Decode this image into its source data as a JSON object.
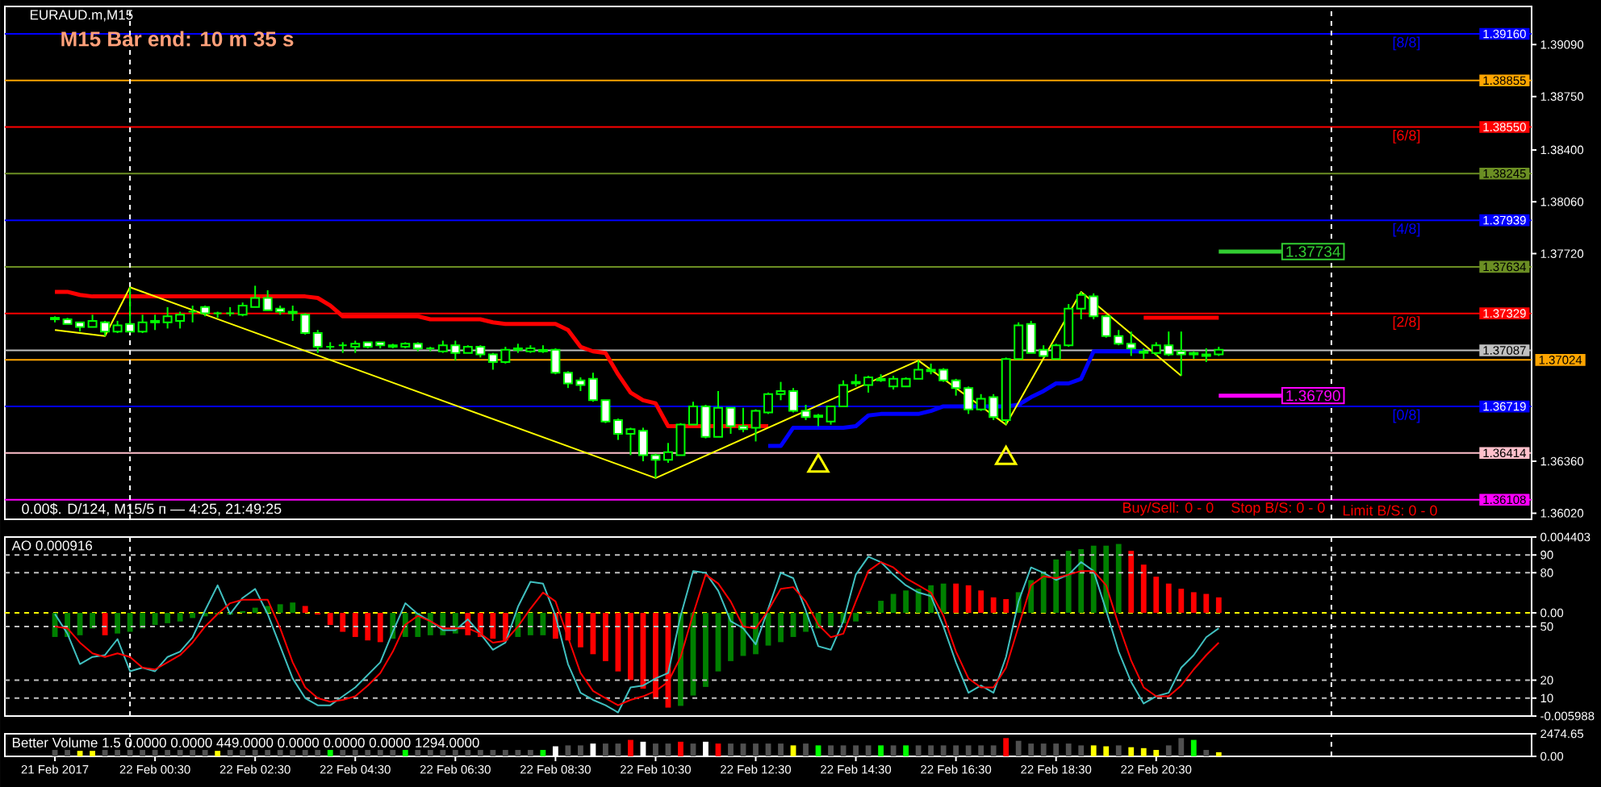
{
  "chart_data": [
    {
      "type": "candlestick",
      "title": "EURAUD.m,M15",
      "color": "#00ff00",
      "x": [
        "2017-02-21T22:30",
        "2017-02-21T22:45",
        "2017-02-21T23:00",
        "2017-02-21T23:15",
        "2017-02-21T23:30",
        "2017-02-21T23:45",
        "2017-02-22T00:00",
        "2017-02-22T00:15",
        "2017-02-22T00:30",
        "2017-02-22T00:45",
        "2017-02-22T01:00",
        "2017-02-22T01:15",
        "2017-02-22T01:30",
        "2017-02-22T01:45",
        "2017-02-22T02:00",
        "2017-02-22T02:15",
        "2017-02-22T02:30",
        "2017-02-22T02:45",
        "2017-02-22T03:00",
        "2017-02-22T03:15",
        "2017-02-22T03:30",
        "2017-02-22T03:45",
        "2017-02-22T04:00",
        "2017-02-22T04:15",
        "2017-02-22T04:30",
        "2017-02-22T04:45",
        "2017-02-22T05:00",
        "2017-02-22T05:15",
        "2017-02-22T05:30",
        "2017-02-22T05:45",
        "2017-02-22T06:00",
        "2017-02-22T06:15",
        "2017-02-22T06:30",
        "2017-02-22T06:45",
        "2017-02-22T07:00",
        "2017-02-22T07:15",
        "2017-02-22T07:30",
        "2017-02-22T07:45",
        "2017-02-22T08:00",
        "2017-02-22T08:15",
        "2017-02-22T08:30",
        "2017-02-22T08:45",
        "2017-02-22T09:00",
        "2017-02-22T09:15",
        "2017-02-22T09:30",
        "2017-02-22T09:45",
        "2017-02-22T10:00",
        "2017-02-22T10:15",
        "2017-02-22T10:30",
        "2017-02-22T10:45",
        "2017-02-22T11:00",
        "2017-02-22T11:15",
        "2017-02-22T11:30",
        "2017-02-22T11:45",
        "2017-02-22T12:00",
        "2017-02-22T12:15",
        "2017-02-22T12:30",
        "2017-02-22T12:45",
        "2017-02-22T13:00",
        "2017-02-22T13:15",
        "2017-02-22T13:30",
        "2017-02-22T13:45",
        "2017-02-22T14:00",
        "2017-02-22T14:15",
        "2017-02-22T14:30",
        "2017-02-22T14:45",
        "2017-02-22T15:00",
        "2017-02-22T15:15",
        "2017-02-22T15:30",
        "2017-02-22T15:45",
        "2017-02-22T16:00",
        "2017-02-22T16:15",
        "2017-02-22T16:30",
        "2017-02-22T16:45",
        "2017-02-22T17:00",
        "2017-02-22T17:15",
        "2017-02-22T17:30",
        "2017-02-22T17:45",
        "2017-02-22T18:00",
        "2017-02-22T18:15",
        "2017-02-22T18:30",
        "2017-02-22T18:45",
        "2017-02-22T19:00",
        "2017-02-22T19:15",
        "2017-02-22T19:30",
        "2017-02-22T19:45",
        "2017-02-22T20:00",
        "2017-02-22T20:15",
        "2017-02-22T20:30",
        "2017-02-22T20:45",
        "2017-02-22T21:00",
        "2017-02-22T21:15",
        "2017-02-22T21:30",
        "2017-02-22T21:45"
      ],
      "ohlc": [
        [
          1.373,
          1.3731,
          1.3727,
          1.3729
        ],
        [
          1.3729,
          1.373,
          1.3726,
          1.3726
        ],
        [
          1.3727,
          1.3727,
          1.3721,
          1.3724
        ],
        [
          1.3724,
          1.3732,
          1.3724,
          1.3728
        ],
        [
          1.3727,
          1.3728,
          1.3718,
          1.3721
        ],
        [
          1.3721,
          1.3728,
          1.372,
          1.3725
        ],
        [
          1.3726,
          1.375,
          1.3721,
          1.3721
        ],
        [
          1.3721,
          1.3732,
          1.372,
          1.3727
        ],
        [
          1.3727,
          1.3732,
          1.3722,
          1.3728
        ],
        [
          1.3727,
          1.3737,
          1.3723,
          1.3731
        ],
        [
          1.3728,
          1.3734,
          1.3723,
          1.3732
        ],
        [
          1.3734,
          1.3738,
          1.3727,
          1.3734
        ],
        [
          1.3737,
          1.3738,
          1.3731,
          1.3733
        ],
        [
          1.3733,
          1.3734,
          1.373,
          1.3733
        ],
        [
          1.3733,
          1.3737,
          1.3731,
          1.3733
        ],
        [
          1.3732,
          1.374,
          1.3731,
          1.3738
        ],
        [
          1.3737,
          1.3751,
          1.3737,
          1.3743
        ],
        [
          1.3743,
          1.3748,
          1.3735,
          1.3735
        ],
        [
          1.3736,
          1.3738,
          1.3732,
          1.3734
        ],
        [
          1.3734,
          1.3738,
          1.3728,
          1.3733
        ],
        [
          1.3732,
          1.3733,
          1.3719,
          1.372
        ],
        [
          1.372,
          1.3722,
          1.3707,
          1.3711
        ],
        [
          1.3711,
          1.3714,
          1.3709,
          1.3711
        ],
        [
          1.3712,
          1.3714,
          1.3707,
          1.3712
        ],
        [
          1.3711,
          1.3715,
          1.3707,
          1.3713
        ],
        [
          1.3714,
          1.3714,
          1.371,
          1.3711
        ],
        [
          1.3714,
          1.3714,
          1.371,
          1.3712
        ],
        [
          1.3712,
          1.3713,
          1.371,
          1.3711
        ],
        [
          1.3711,
          1.3714,
          1.371,
          1.3713
        ],
        [
          1.3713,
          1.3714,
          1.3708,
          1.371
        ],
        [
          1.371,
          1.3711,
          1.3708,
          1.371
        ],
        [
          1.3708,
          1.3715,
          1.3707,
          1.3712
        ],
        [
          1.3712,
          1.3715,
          1.3702,
          1.3707
        ],
        [
          1.3707,
          1.3712,
          1.3707,
          1.3711
        ],
        [
          1.3711,
          1.3712,
          1.3704,
          1.3706
        ],
        [
          1.3706,
          1.3707,
          1.3696,
          1.3701
        ],
        [
          1.3701,
          1.3711,
          1.37,
          1.3709
        ],
        [
          1.3709,
          1.3713,
          1.3707,
          1.371
        ],
        [
          1.3708,
          1.3712,
          1.3707,
          1.371
        ],
        [
          1.3709,
          1.3712,
          1.3707,
          1.3708
        ],
        [
          1.3709,
          1.371,
          1.3693,
          1.3694
        ],
        [
          1.3694,
          1.3695,
          1.3684,
          1.3687
        ],
        [
          1.3689,
          1.3691,
          1.3682,
          1.3686
        ],
        [
          1.369,
          1.3694,
          1.3675,
          1.3676
        ],
        [
          1.3676,
          1.3676,
          1.3661,
          1.3662
        ],
        [
          1.3663,
          1.3664,
          1.365,
          1.3654
        ],
        [
          1.3654,
          1.3658,
          1.364,
          1.3657
        ],
        [
          1.3656,
          1.3658,
          1.3636,
          1.364
        ],
        [
          1.364,
          1.3641,
          1.3625,
          1.3637
        ],
        [
          1.3637,
          1.3648,
          1.3635,
          1.3642
        ],
        [
          1.364,
          1.3661,
          1.364,
          1.366
        ],
        [
          1.366,
          1.3675,
          1.366,
          1.3672
        ],
        [
          1.3672,
          1.3673,
          1.3651,
          1.3652
        ],
        [
          1.3652,
          1.3682,
          1.3652,
          1.3671
        ],
        [
          1.3671,
          1.3671,
          1.3654,
          1.3659
        ],
        [
          1.3659,
          1.3671,
          1.3655,
          1.3657
        ],
        [
          1.3658,
          1.367,
          1.3649,
          1.3669
        ],
        [
          1.3668,
          1.3681,
          1.3667,
          1.368
        ],
        [
          1.368,
          1.3688,
          1.3676,
          1.3682
        ],
        [
          1.3682,
          1.3684,
          1.3668,
          1.3669
        ],
        [
          1.3669,
          1.3673,
          1.3663,
          1.3665
        ],
        [
          1.3665,
          1.3667,
          1.3659,
          1.3666
        ],
        [
          1.3662,
          1.3672,
          1.366,
          1.3672
        ],
        [
          1.3672,
          1.3689,
          1.3672,
          1.3686
        ],
        [
          1.3687,
          1.3693,
          1.3685,
          1.3688
        ],
        [
          1.3686,
          1.3692,
          1.3681,
          1.3691
        ],
        [
          1.3689,
          1.3693,
          1.3688,
          1.369
        ],
        [
          1.3685,
          1.3692,
          1.3683,
          1.369
        ],
        [
          1.3685,
          1.3691,
          1.3685,
          1.369
        ],
        [
          1.369,
          1.3702,
          1.369,
          1.3696
        ],
        [
          1.3696,
          1.37,
          1.3693,
          1.3695
        ],
        [
          1.3696,
          1.3697,
          1.3688,
          1.3689
        ],
        [
          1.3689,
          1.369,
          1.3679,
          1.3684
        ],
        [
          1.3684,
          1.3685,
          1.3667,
          1.367
        ],
        [
          1.367,
          1.368,
          1.3669,
          1.3677
        ],
        [
          1.3678,
          1.368,
          1.3663,
          1.3665
        ],
        [
          1.3663,
          1.3704,
          1.366,
          1.3703
        ],
        [
          1.3703,
          1.3727,
          1.3703,
          1.3725
        ],
        [
          1.3726,
          1.3728,
          1.3707,
          1.3707
        ],
        [
          1.3709,
          1.3712,
          1.3704,
          1.3705
        ],
        [
          1.3703,
          1.3713,
          1.3703,
          1.3712
        ],
        [
          1.3712,
          1.3739,
          1.3711,
          1.3736
        ],
        [
          1.3736,
          1.3747,
          1.3729,
          1.3745
        ],
        [
          1.3744,
          1.3746,
          1.3729,
          1.3731
        ],
        [
          1.3731,
          1.3732,
          1.3717,
          1.3718
        ],
        [
          1.3718,
          1.3722,
          1.3712,
          1.3713
        ],
        [
          1.3713,
          1.3721,
          1.3705,
          1.371
        ],
        [
          1.3708,
          1.371,
          1.3703,
          1.3707
        ],
        [
          1.3707,
          1.3714,
          1.3705,
          1.3712
        ],
        [
          1.3712,
          1.3721,
          1.3705,
          1.3706
        ],
        [
          1.3708,
          1.3721,
          1.3692,
          1.3706
        ],
        [
          1.3706,
          1.3708,
          1.3703,
          1.3707
        ],
        [
          1.3705,
          1.371,
          1.3701,
          1.3706
        ],
        [
          1.3706,
          1.3711,
          1.3705,
          1.3709
        ]
      ],
      "xlim": [
        "2017-02-21T21:30",
        "2017-02-23T04:00"
      ],
      "ylim": [
        1.3598,
        1.3934
      ],
      "yticks": [
        {
          "value": 1.3909,
          "label": "1.39090"
        },
        {
          "value": 1.3875,
          "label": "1.38750"
        },
        {
          "value": 1.384,
          "label": "1.38400"
        },
        {
          "value": 1.3806,
          "label": "1.38060"
        },
        {
          "value": 1.3772,
          "label": "1.37720"
        },
        {
          "value": 1.3636,
          "label": "1.36360"
        },
        {
          "value": 1.3602,
          "label": "1.36020"
        }
      ],
      "tick_labels": "y",
      "series": [
        {
          "type": "line",
          "color": "#ff0000",
          "values": [
            1.3747,
            1.3747,
            1.3745,
            1.3744,
            1.3744,
            1.3744,
            1.3744,
            1.3744,
            1.3744,
            1.3744,
            1.3744,
            1.3744,
            1.3744,
            1.3744,
            1.3744,
            1.3744,
            1.3744,
            1.3744,
            1.3744,
            1.3744,
            1.3744,
            1.3743,
            1.3738,
            1.3731,
            1.3731,
            1.3731,
            1.3731,
            1.3731,
            1.3731,
            1.3731,
            1.3729,
            1.3729,
            1.3729,
            1.3729,
            1.3729,
            1.3727,
            1.3726,
            1.3726,
            1.3726,
            1.3726,
            1.3726,
            1.3722,
            1.3711,
            1.3708,
            1.3707,
            1.3693,
            1.3681,
            1.3676,
            1.3674,
            1.3659,
            1.3659,
            1.3659,
            1.3659,
            1.3659,
            1.3659,
            1.3659,
            1.3659,
            1.3659,
            null,
            null,
            null,
            null,
            null,
            null,
            null,
            null,
            null,
            null,
            null,
            null,
            null,
            null,
            null,
            null,
            null,
            null,
            null,
            null,
            null,
            null,
            null,
            null,
            null,
            null,
            null,
            null,
            null,
            1.373,
            1.373,
            1.373,
            1.373,
            1.373,
            1.373,
            1.373
          ]
        },
        {
          "type": "line",
          "color": "#0000ff",
          "values": [
            null,
            null,
            null,
            null,
            null,
            null,
            null,
            null,
            null,
            null,
            null,
            null,
            null,
            null,
            null,
            null,
            null,
            null,
            null,
            null,
            null,
            null,
            null,
            null,
            null,
            null,
            null,
            null,
            null,
            null,
            null,
            null,
            null,
            null,
            null,
            null,
            null,
            null,
            null,
            null,
            null,
            null,
            null,
            null,
            null,
            null,
            null,
            null,
            null,
            null,
            null,
            null,
            null,
            null,
            null,
            null,
            null,
            1.3646,
            1.3646,
            1.3658,
            1.3658,
            1.3658,
            1.3658,
            1.3658,
            1.3659,
            1.3666,
            1.3667,
            1.3667,
            1.3667,
            1.3667,
            1.3669,
            1.3672,
            1.3672,
            1.3672,
            1.3672,
            1.3672,
            1.3672,
            1.3673,
            1.3678,
            1.3682,
            1.3687,
            1.3687,
            1.369,
            1.3708,
            1.3708,
            1.3708,
            1.3708,
            1.3708,
            null,
            null,
            null,
            null,
            null,
            null
          ]
        },
        {
          "type": "line",
          "color": "#ffff00",
          "x": [
            "2017-02-21T22:30",
            "2017-02-21T23:30",
            "2017-02-22T00:00",
            "2017-02-22T10:30",
            "2017-02-22T15:45",
            "2017-02-22T17:30",
            "2017-02-22T19:00",
            "2017-02-22T21:00"
          ],
          "values": [
            1.3722,
            1.3718,
            1.375,
            1.3625,
            1.3702,
            1.366,
            1.3747,
            1.3692
          ]
        },
        {
          "type": "line",
          "color": "#32cd32",
          "x": [
            "2017-02-22T21:45",
            "2017-02-22T23:00"
          ],
          "values": [
            1.37734,
            1.37734
          ]
        },
        {
          "type": "line",
          "color": "#ff00ff",
          "x": [
            "2017-02-22T21:45",
            "2017-02-22T23:00"
          ],
          "values": [
            1.3679,
            1.3679
          ]
        },
        {
          "type": "scatter",
          "color": "#ffff00",
          "marker": "triangle",
          "x": [
            "2017-02-22T13:45",
            "2017-02-22T17:30"
          ],
          "values": [
            1.3633,
            1.3638
          ]
        }
      ],
      "ref_lines": [
        {
          "axis": "y",
          "value": 1.3916,
          "label": "1.39160",
          "color": "#0000ff"
        },
        {
          "axis": "y",
          "value": 1.38855,
          "label": "1.38855",
          "color": "#ffa500"
        },
        {
          "axis": "y",
          "value": 1.3855,
          "label": "1.38550",
          "color": "#ff0000"
        },
        {
          "axis": "y",
          "value": 1.38245,
          "label": "1.38245",
          "color": "#6b8e23"
        },
        {
          "axis": "y",
          "value": 1.37939,
          "label": "1.37939",
          "color": "#0000ff"
        },
        {
          "axis": "y",
          "value": 1.37634,
          "label": "1.37634",
          "color": "#6b8e23"
        },
        {
          "axis": "y",
          "value": 1.37329,
          "label": "1.37329",
          "color": "#ff0000"
        },
        {
          "axis": "y",
          "value": 1.37087,
          "label": "1.37087",
          "color": "#c0c0c0"
        },
        {
          "axis": "y",
          "value": 1.37024,
          "label": "1.37024",
          "color": "#ffa500"
        },
        {
          "axis": "y",
          "value": 1.36719,
          "label": "1.36719",
          "color": "#0000ff"
        },
        {
          "axis": "y",
          "value": 1.36414,
          "label": "1.36414",
          "color": "#ffc0cb"
        },
        {
          "axis": "y",
          "value": 1.36108,
          "label": "1.36108",
          "color": "#ff00ff"
        },
        {
          "axis": "x",
          "value": "2017-02-22T00:00",
          "color": "#ffffff",
          "line_style": "dashed"
        },
        {
          "axis": "x",
          "value": "2017-02-23T00:00",
          "color": "#ffffff",
          "line_style": "dashed"
        }
      ],
      "annotations": [
        "M15 Bar end: 10 m 35 s",
        "0.00$. D/124, M15/5 п — 4:25, 21:49:25",
        "Buy/Sell: 0 - 0",
        "Stop B/S: 0 - 0",
        "Limit B/S: 0 - 0",
        {
          "text": "[8/8]",
          "x": "2017-02-23T01:30",
          "y": 1.3916
        },
        {
          "text": "[6/8]",
          "x": "2017-02-23T01:30",
          "y": 1.3855
        },
        {
          "text": "[4/8]",
          "x": "2017-02-23T01:30",
          "y": 1.37939
        },
        {
          "text": "[2/8]",
          "x": "2017-02-23T01:30",
          "y": 1.37329
        },
        {
          "text": "[0/8]",
          "x": "2017-02-23T01:30",
          "y": 1.36719
        },
        {
          "text": "1.37734",
          "x": "2017-02-22T23:00",
          "y": 1.37734
        },
        {
          "text": "1.36790",
          "x": "2017-02-22T23:00",
          "y": 1.3679
        }
      ]
    },
    {
      "type": "bar",
      "title": "AO 0.000916",
      "x": [
        "2017-02-21T22:30",
        "2017-02-21T22:45",
        "2017-02-21T23:00",
        "2017-02-21T23:15",
        "2017-02-21T23:30",
        "2017-02-21T23:45",
        "2017-02-22T00:00",
        "2017-02-22T00:15",
        "2017-02-22T00:30",
        "2017-02-22T00:45",
        "2017-02-22T01:00",
        "2017-02-22T01:15",
        "2017-02-22T01:30",
        "2017-02-22T01:45",
        "2017-02-22T02:00",
        "2017-02-22T02:15",
        "2017-02-22T02:30",
        "2017-02-22T02:45",
        "2017-02-22T03:00",
        "2017-02-22T03:15",
        "2017-02-22T03:30",
        "2017-02-22T03:45",
        "2017-02-22T04:00",
        "2017-02-22T04:15",
        "2017-02-22T04:30",
        "2017-02-22T04:45",
        "2017-02-22T05:00",
        "2017-02-22T05:15",
        "2017-02-22T05:30",
        "2017-02-22T05:45",
        "2017-02-22T06:00",
        "2017-02-22T06:15",
        "2017-02-22T06:30",
        "2017-02-22T06:45",
        "2017-02-22T07:00",
        "2017-02-22T07:15",
        "2017-02-22T07:30",
        "2017-02-22T07:45",
        "2017-02-22T08:00",
        "2017-02-22T08:15",
        "2017-02-22T08:30",
        "2017-02-22T08:45",
        "2017-02-22T09:00",
        "2017-02-22T09:15",
        "2017-02-22T09:30",
        "2017-02-22T09:45",
        "2017-02-22T10:00",
        "2017-02-22T10:15",
        "2017-02-22T10:30",
        "2017-02-22T10:45",
        "2017-02-22T11:00",
        "2017-02-22T11:15",
        "2017-02-22T11:30",
        "2017-02-22T11:45",
        "2017-02-22T12:00",
        "2017-02-22T12:15",
        "2017-02-22T12:30",
        "2017-02-22T12:45",
        "2017-02-22T13:00",
        "2017-02-22T13:15",
        "2017-02-22T13:30",
        "2017-02-22T13:45",
        "2017-02-22T14:00",
        "2017-02-22T14:15",
        "2017-02-22T14:30",
        "2017-02-22T14:45",
        "2017-02-22T15:00",
        "2017-02-22T15:15",
        "2017-02-22T15:30",
        "2017-02-22T15:45",
        "2017-02-22T16:00",
        "2017-02-22T16:15",
        "2017-02-22T16:30",
        "2017-02-22T16:45",
        "2017-02-22T17:00",
        "2017-02-22T17:15",
        "2017-02-22T17:30",
        "2017-02-22T17:45",
        "2017-02-22T18:00",
        "2017-02-22T18:15",
        "2017-02-22T18:30",
        "2017-02-22T18:45",
        "2017-02-22T19:00",
        "2017-02-22T19:15",
        "2017-02-22T19:30",
        "2017-02-22T19:45",
        "2017-02-22T20:00",
        "2017-02-22T20:15",
        "2017-02-22T20:30",
        "2017-02-22T20:45",
        "2017-02-22T21:00",
        "2017-02-22T21:15",
        "2017-02-22T21:30",
        "2017-02-22T21:45"
      ],
      "xlim": [
        "2017-02-21T21:30",
        "2017-02-23T04:00"
      ],
      "ylim": [
        -0.005988,
        0.004403
      ],
      "yticks": [
        0.004403,
        {
          "value": 0,
          "label": "0.00"
        },
        -0.005988
      ],
      "y2lim": [
        0,
        100
      ],
      "y2ticks": [
        90,
        80,
        50,
        20,
        10
      ],
      "tick_labels": "y",
      "series": [
        {
          "type": "bar",
          "values": [
            -0.0014,
            -0.0014,
            -0.0013,
            -0.0009,
            -0.0013,
            -0.0012,
            -0.0011,
            -0.0009,
            -0.0007,
            -0.0006,
            -0.0005,
            -0.0003,
            -0.0002,
            -0.0001,
            -0.0001,
            0.0001,
            0.0003,
            0.0004,
            0.0005,
            0.0006,
            0.0004,
            -0.0001,
            -0.0007,
            -0.0011,
            -0.0014,
            -0.0016,
            -0.0017,
            -0.0015,
            -0.0014,
            -0.0014,
            -0.0013,
            -0.0013,
            -0.0012,
            -0.0013,
            -0.0014,
            -0.0015,
            -0.0016,
            -0.0014,
            -0.0013,
            -0.0013,
            -0.0015,
            -0.0016,
            -0.002,
            -0.0024,
            -0.0028,
            -0.0034,
            -0.0039,
            -0.0044,
            -0.005,
            -0.0055,
            -0.0054,
            -0.0048,
            -0.0043,
            -0.0034,
            -0.0028,
            -0.0025,
            -0.0024,
            -0.0019,
            -0.0017,
            -0.0014,
            -0.0011,
            -0.0009,
            -0.0008,
            -0.0006,
            -0.0005,
            0.0001,
            0.0007,
            0.0011,
            0.0013,
            0.0014,
            0.0016,
            0.0017,
            0.0017,
            0.0016,
            0.0013,
            0.0009,
            0.0008,
            0.0012,
            0.0019,
            0.0024,
            0.0031,
            0.0036,
            0.0037,
            0.0039,
            0.0039,
            0.004,
            0.0036,
            0.0028,
            0.0021,
            0.0017,
            0.0014,
            0.0012,
            0.0011,
            0.0009
          ],
          "colors": [
            "#008000",
            "#008000",
            "#008000",
            "#008000",
            "#ff0000",
            "#008000",
            "#008000",
            "#008000",
            "#008000",
            "#008000",
            "#008000",
            "#008000",
            "#008000",
            "#008000",
            "#008000",
            "#008000",
            "#008000",
            "#008000",
            "#008000",
            "#008000",
            "#ff0000",
            "#ff0000",
            "#ff0000",
            "#ff0000",
            "#ff0000",
            "#ff0000",
            "#ff0000",
            "#008000",
            "#008000",
            "#008000",
            "#008000",
            "#008000",
            "#008000",
            "#ff0000",
            "#ff0000",
            "#ff0000",
            "#ff0000",
            "#008000",
            "#008000",
            "#008000",
            "#ff0000",
            "#ff0000",
            "#ff0000",
            "#ff0000",
            "#ff0000",
            "#ff0000",
            "#ff0000",
            "#ff0000",
            "#ff0000",
            "#ff0000",
            "#008000",
            "#008000",
            "#008000",
            "#008000",
            "#008000",
            "#008000",
            "#008000",
            "#008000",
            "#008000",
            "#008000",
            "#008000",
            "#008000",
            "#008000",
            "#008000",
            "#008000",
            "#008000",
            "#008000",
            "#008000",
            "#008000",
            "#008000",
            "#008000",
            "#008000",
            "#ff0000",
            "#ff0000",
            "#ff0000",
            "#ff0000",
            "#ff0000",
            "#008000",
            "#008000",
            "#008000",
            "#008000",
            "#008000",
            "#008000",
            "#008000",
            "#008000",
            "#008000",
            "#ff0000",
            "#ff0000",
            "#ff0000",
            "#ff0000",
            "#ff0000",
            "#ff0000",
            "#ff0000",
            "#ff0000"
          ]
        },
        {
          "type": "line",
          "color": "#40c0c0",
          "axis": "y2",
          "values": [
            57,
            46,
            29,
            33,
            34,
            43,
            25,
            27,
            25,
            33,
            36,
            44,
            59,
            73,
            57,
            66,
            71,
            57,
            39,
            21,
            10,
            6,
            6,
            11,
            16,
            23,
            30,
            47,
            63,
            57,
            53,
            48,
            48,
            54,
            46,
            37,
            41,
            61,
            75,
            74,
            56,
            29,
            13,
            9,
            6,
            2,
            16,
            17,
            21,
            24,
            56,
            81,
            80,
            70,
            53,
            49,
            40,
            60,
            80,
            77,
            59,
            39,
            37,
            53,
            79,
            89,
            86,
            79,
            73,
            69,
            67,
            50,
            30,
            13,
            17,
            13,
            33,
            64,
            83,
            80,
            76,
            79,
            86,
            81,
            59,
            36,
            19,
            7,
            11,
            13,
            27,
            34,
            44,
            49
          ]
        },
        {
          "type": "line",
          "color": "#ff0000",
          "axis": "y2",
          "values": [
            50,
            49,
            41,
            35,
            33,
            35,
            33,
            27,
            26,
            30,
            34,
            41,
            50,
            57,
            63,
            65,
            65,
            65,
            49,
            30,
            16,
            10,
            8,
            9,
            11,
            17,
            24,
            36,
            51,
            56,
            53,
            49,
            49,
            49,
            46,
            41,
            42,
            50,
            60,
            69,
            64,
            44,
            24,
            14,
            10,
            6,
            9,
            11,
            14,
            19,
            33,
            57,
            79,
            74,
            64,
            50,
            49,
            59,
            71,
            72,
            64,
            51,
            44,
            46,
            64,
            81,
            86,
            83,
            77,
            73,
            69,
            56,
            36,
            21,
            16,
            16,
            27,
            50,
            73,
            78,
            77,
            79,
            81,
            81,
            73,
            51,
            31,
            16,
            11,
            11,
            17,
            26,
            34,
            41
          ]
        }
      ],
      "ref_lines": [
        {
          "axis": "y",
          "value": 0,
          "color": "#ffff00",
          "line_style": "dashed"
        },
        {
          "axis": "y2",
          "value": 90,
          "color": "#c0c0c0",
          "line_style": "dashed"
        },
        {
          "axis": "y2",
          "value": 80,
          "color": "#c0c0c0",
          "line_style": "dashed"
        },
        {
          "axis": "y2",
          "value": 50,
          "color": "#c0c0c0",
          "line_style": "dashed"
        },
        {
          "axis": "y2",
          "value": 20,
          "color": "#c0c0c0",
          "line_style": "dashed"
        },
        {
          "axis": "y2",
          "value": 10,
          "color": "#c0c0c0",
          "line_style": "dashed"
        },
        {
          "axis": "x",
          "value": "2017-02-22T00:00",
          "color": "#ffffff",
          "line_style": "dashed"
        },
        {
          "axis": "x",
          "value": "2017-02-23T00:00",
          "color": "#ffffff",
          "line_style": "dashed"
        }
      ]
    },
    {
      "type": "bar",
      "title": "Better Volume 1.5 0.0000 0.0000 449.0000 0.0000 0.0000 0.0000 1294.0000",
      "x": [
        "2017-02-21T22:30",
        "2017-02-21T22:45",
        "2017-02-21T23:00",
        "2017-02-21T23:15",
        "2017-02-21T23:30",
        "2017-02-21T23:45",
        "2017-02-22T00:00",
        "2017-02-22T00:15",
        "2017-02-22T00:30",
        "2017-02-22T00:45",
        "2017-02-22T01:00",
        "2017-02-22T01:15",
        "2017-02-22T01:30",
        "2017-02-22T01:45",
        "2017-02-22T02:00",
        "2017-02-22T02:15",
        "2017-02-22T02:30",
        "2017-02-22T02:45",
        "2017-02-22T03:00",
        "2017-02-22T03:15",
        "2017-02-22T03:30",
        "2017-02-22T03:45",
        "2017-02-22T04:00",
        "2017-02-22T04:15",
        "2017-02-22T04:30",
        "2017-02-22T04:45",
        "2017-02-22T05:00",
        "2017-02-22T05:15",
        "2017-02-22T05:30",
        "2017-02-22T05:45",
        "2017-02-22T06:00",
        "2017-02-22T06:15",
        "2017-02-22T06:30",
        "2017-02-22T06:45",
        "2017-02-22T07:00",
        "2017-02-22T07:15",
        "2017-02-22T07:30",
        "2017-02-22T07:45",
        "2017-02-22T08:00",
        "2017-02-22T08:15",
        "2017-02-22T08:30",
        "2017-02-22T08:45",
        "2017-02-22T09:00",
        "2017-02-22T09:15",
        "2017-02-22T09:30",
        "2017-02-22T09:45",
        "2017-02-22T10:00",
        "2017-02-22T10:15",
        "2017-02-22T10:30",
        "2017-02-22T10:45",
        "2017-02-22T11:00",
        "2017-02-22T11:15",
        "2017-02-22T11:30",
        "2017-02-22T11:45",
        "2017-02-22T12:00",
        "2017-02-22T12:15",
        "2017-02-22T12:30",
        "2017-02-22T12:45",
        "2017-02-22T13:00",
        "2017-02-22T13:15",
        "2017-02-22T13:30",
        "2017-02-22T13:45",
        "2017-02-22T14:00",
        "2017-02-22T14:15",
        "2017-02-22T14:30",
        "2017-02-22T14:45",
        "2017-02-22T15:00",
        "2017-02-22T15:15",
        "2017-02-22T15:30",
        "2017-02-22T15:45",
        "2017-02-22T16:00",
        "2017-02-22T16:15",
        "2017-02-22T16:30",
        "2017-02-22T16:45",
        "2017-02-22T17:00",
        "2017-02-22T17:15",
        "2017-02-22T17:30",
        "2017-02-22T17:45",
        "2017-02-22T18:00",
        "2017-02-22T18:15",
        "2017-02-22T18:30",
        "2017-02-22T18:45",
        "2017-02-22T19:00",
        "2017-02-22T19:15",
        "2017-02-22T19:30",
        "2017-02-22T19:45",
        "2017-02-22T20:00",
        "2017-02-22T20:15",
        "2017-02-22T20:30",
        "2017-02-22T20:45",
        "2017-02-22T21:00",
        "2017-02-22T21:15",
        "2017-02-22T21:30",
        "2017-02-22T21:45"
      ],
      "values": [
        700,
        700,
        600,
        600,
        700,
        700,
        700,
        700,
        700,
        700,
        700,
        700,
        700,
        600,
        700,
        700,
        700,
        700,
        700,
        700,
        700,
        700,
        700,
        700,
        700,
        700,
        700,
        700,
        700,
        700,
        700,
        700,
        700,
        700,
        700,
        700,
        700,
        700,
        700,
        700,
        1100,
        1200,
        1200,
        1400,
        1400,
        1400,
        1800,
        1600,
        1400,
        1400,
        1600,
        1400,
        1600,
        1400,
        1400,
        1400,
        1400,
        1400,
        1400,
        1200,
        1400,
        1200,
        1200,
        1200,
        1200,
        1200,
        1200,
        1200,
        1200,
        1200,
        1200,
        1200,
        1200,
        1200,
        1200,
        1200,
        2000,
        1700,
        1400,
        1400,
        1400,
        1400,
        1200,
        1200,
        1100,
        1200,
        1000,
        900,
        700,
        1200,
        2000,
        1800,
        700,
        449
      ],
      "colors": [
        "#505050",
        "#505050",
        "#ffff00",
        "#ffff00",
        "#505050",
        "#505050",
        "#505050",
        "#505050",
        "#505050",
        "#505050",
        "#505050",
        "#505050",
        "#505050",
        "#ffff00",
        "#505050",
        "#505050",
        "#505050",
        "#505050",
        "#505050",
        "#505050",
        "#505050",
        "#505050",
        "#00ff00",
        "#505050",
        "#505050",
        "#505050",
        "#505050",
        "#505050",
        "#00ff00",
        "#505050",
        "#505050",
        "#505050",
        "#505050",
        "#505050",
        "#505050",
        "#505050",
        "#505050",
        "#505050",
        "#505050",
        "#00ff00",
        "#ffffff",
        "#505050",
        "#505050",
        "#ffffff",
        "#505050",
        "#505050",
        "#ff0000",
        "#ffffff",
        "#505050",
        "#505050",
        "#ff0000",
        "#505050",
        "#ffffff",
        "#ff0000",
        "#505050",
        "#505050",
        "#505050",
        "#505050",
        "#505050",
        "#ffff00",
        "#505050",
        "#00ff00",
        "#505050",
        "#505050",
        "#505050",
        "#505050",
        "#00ff00",
        "#505050",
        "#00ff00",
        "#505050",
        "#505050",
        "#505050",
        "#505050",
        "#505050",
        "#505050",
        "#505050",
        "#ff0000",
        "#505050",
        "#505050",
        "#505050",
        "#505050",
        "#505050",
        "#505050",
        "#ffff00",
        "#ffff00",
        "#505050",
        "#ffff00",
        "#ffff00",
        "#ffff00",
        "#505050",
        "#505050",
        "#00ff00",
        "#505050",
        "#ffff00"
      ],
      "xlim": [
        "2017-02-21T21:30",
        "2017-02-23T04:00"
      ],
      "xticks": [
        {
          "value": "2017-02-21T22:30",
          "label": "21 Feb 2017"
        },
        {
          "value": "2017-02-22T00:30",
          "label": "22 Feb 00:30"
        },
        {
          "value": "2017-02-22T02:30",
          "label": "22 Feb 02:30"
        },
        {
          "value": "2017-02-22T04:30",
          "label": "22 Feb 04:30"
        },
        {
          "value": "2017-02-22T06:30",
          "label": "22 Feb 06:30"
        },
        {
          "value": "2017-02-22T08:30",
          "label": "22 Feb 08:30"
        },
        {
          "value": "2017-02-22T10:30",
          "label": "22 Feb 10:30"
        },
        {
          "value": "2017-02-22T12:30",
          "label": "22 Feb 12:30"
        },
        {
          "value": "2017-02-22T14:30",
          "label": "22 Feb 14:30"
        },
        {
          "value": "2017-02-22T16:30",
          "label": "22 Feb 16:30"
        },
        {
          "value": "2017-02-22T18:30",
          "label": "22 Feb 18:30"
        },
        {
          "value": "2017-02-22T20:30",
          "label": "22 Feb 20:30"
        }
      ],
      "ylim": [
        0,
        2474.65
      ],
      "yticks": [
        2474.65,
        {
          "value": 0,
          "label": "0.00"
        }
      ],
      "ref_lines": [
        {
          "axis": "x",
          "value": "2017-02-22T00:00",
          "color": "#ffffff",
          "line_style": "dashed"
        },
        {
          "axis": "x",
          "value": "2017-02-23T00:00",
          "color": "#ffffff",
          "line_style": "dashed"
        }
      ]
    }
  ]
}
